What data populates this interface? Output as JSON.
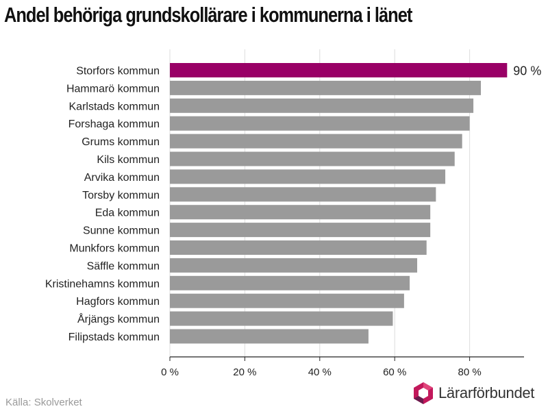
{
  "title": "Andel behöriga grundskollärare i kommunerna i länet",
  "source": "Källa: Skolverket",
  "logo_text": "Lärarförbundet",
  "colors": {
    "highlight": "#990066",
    "bar": "#9a9a9a",
    "grid": "#dcdcdc",
    "axis": "#222222",
    "logo_pink": "#c2185b",
    "logo_purple": "#6a1b4d"
  },
  "chart_data": {
    "type": "bar",
    "orientation": "horizontal",
    "title": "Andel behöriga grundskollärare i kommunerna i länet",
    "categories": [
      "Storfors kommun",
      "Hammarö kommun",
      "Karlstads kommun",
      "Forshaga kommun",
      "Grums kommun",
      "Kils kommun",
      "Arvika kommun",
      "Torsby kommun",
      "Eda kommun",
      "Sunne kommun",
      "Munkfors kommun",
      "Säffle kommun",
      "Kristinehamns kommun",
      "Hagfors kommun",
      "Årjängs kommun",
      "Filipstads kommun"
    ],
    "values": [
      90,
      83,
      81,
      80,
      78,
      76,
      73.5,
      71,
      69.5,
      69.5,
      68.5,
      66,
      64,
      62.5,
      59.5,
      53
    ],
    "highlight_index": 0,
    "data_labels": [
      "90 %"
    ],
    "xlim": [
      0,
      94
    ],
    "xticks": [
      0,
      20,
      40,
      60,
      80
    ],
    "xtick_labels": [
      "0 %",
      "20 %",
      "40 %",
      "60 %",
      "80 %"
    ],
    "grid": true,
    "xlabel": "",
    "ylabel": ""
  }
}
